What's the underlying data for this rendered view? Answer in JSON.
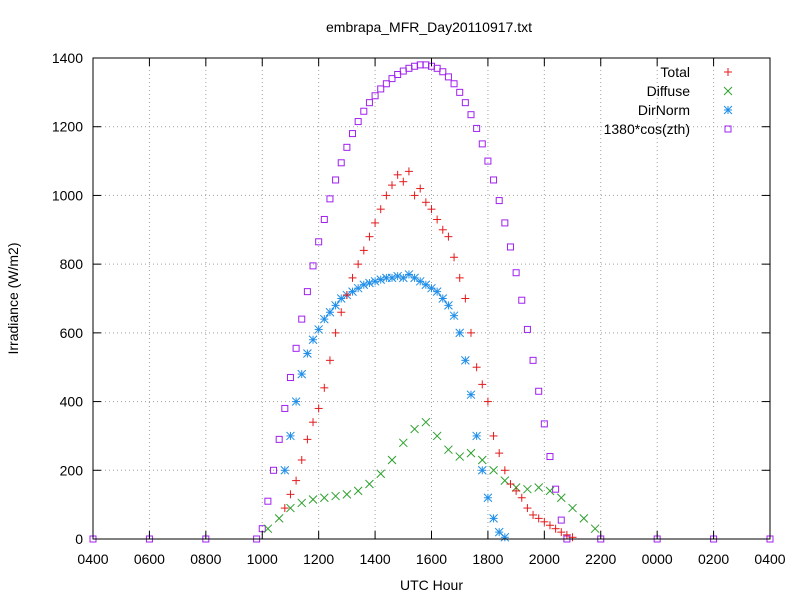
{
  "chart_data": {
    "type": "scatter",
    "title": "embrapa_MFR_Day20110917.txt",
    "xlabel": "UTC Hour",
    "ylabel": "Irradiance (W/m2)",
    "x_tick_labels": [
      "0400",
      "0600",
      "0800",
      "1000",
      "1200",
      "1400",
      "1600",
      "1800",
      "2000",
      "2200",
      "0000",
      "0200",
      "0400"
    ],
    "y_ticks": [
      0,
      200,
      400,
      600,
      800,
      1000,
      1200,
      1400
    ],
    "xlim": [
      4,
      28
    ],
    "ylim": [
      0,
      1400
    ],
    "grid": true,
    "legend_position": "top-right",
    "series": [
      {
        "name": "Total",
        "marker": "plus",
        "color": "#e41a1c",
        "points": [
          [
            10.8,
            90
          ],
          [
            11.0,
            130
          ],
          [
            11.2,
            170
          ],
          [
            11.4,
            230
          ],
          [
            11.6,
            290
          ],
          [
            11.8,
            340
          ],
          [
            12.0,
            380
          ],
          [
            12.2,
            440
          ],
          [
            12.4,
            520
          ],
          [
            12.6,
            600
          ],
          [
            12.8,
            660
          ],
          [
            13.0,
            710
          ],
          [
            13.2,
            760
          ],
          [
            13.4,
            800
          ],
          [
            13.6,
            840
          ],
          [
            13.8,
            880
          ],
          [
            14.0,
            920
          ],
          [
            14.2,
            960
          ],
          [
            14.4,
            1000
          ],
          [
            14.6,
            1030
          ],
          [
            14.8,
            1060
          ],
          [
            15.0,
            1040
          ],
          [
            15.2,
            1070
          ],
          [
            15.4,
            1000
          ],
          [
            15.6,
            1020
          ],
          [
            15.8,
            980
          ],
          [
            16.0,
            960
          ],
          [
            16.2,
            930
          ],
          [
            16.4,
            900
          ],
          [
            16.6,
            880
          ],
          [
            16.8,
            820
          ],
          [
            17.0,
            760
          ],
          [
            17.2,
            700
          ],
          [
            17.4,
            600
          ],
          [
            17.6,
            500
          ],
          [
            17.8,
            450
          ],
          [
            18.0,
            400
          ],
          [
            18.2,
            300
          ],
          [
            18.4,
            250
          ],
          [
            18.6,
            200
          ],
          [
            18.8,
            160
          ],
          [
            19.0,
            140
          ],
          [
            19.2,
            120
          ],
          [
            19.4,
            90
          ],
          [
            19.6,
            70
          ],
          [
            19.8,
            60
          ],
          [
            20.0,
            50
          ],
          [
            20.2,
            40
          ],
          [
            20.4,
            30
          ],
          [
            20.6,
            20
          ],
          [
            20.8,
            12
          ],
          [
            21.0,
            5
          ]
        ]
      },
      {
        "name": "Diffuse",
        "marker": "cross",
        "color": "#2ca02c",
        "points": [
          [
            10.2,
            30
          ],
          [
            10.6,
            60
          ],
          [
            11.0,
            90
          ],
          [
            11.4,
            105
          ],
          [
            11.8,
            115
          ],
          [
            12.2,
            120
          ],
          [
            12.6,
            125
          ],
          [
            13.0,
            130
          ],
          [
            13.4,
            140
          ],
          [
            13.8,
            160
          ],
          [
            14.2,
            190
          ],
          [
            14.6,
            230
          ],
          [
            15.0,
            280
          ],
          [
            15.4,
            320
          ],
          [
            15.8,
            340
          ],
          [
            16.2,
            300
          ],
          [
            16.6,
            260
          ],
          [
            17.0,
            240
          ],
          [
            17.4,
            250
          ],
          [
            17.8,
            230
          ],
          [
            18.2,
            200
          ],
          [
            18.6,
            170
          ],
          [
            19.0,
            150
          ],
          [
            19.4,
            145
          ],
          [
            19.8,
            150
          ],
          [
            20.2,
            140
          ],
          [
            20.6,
            120
          ],
          [
            21.0,
            90
          ],
          [
            21.4,
            60
          ],
          [
            21.8,
            30
          ]
        ]
      },
      {
        "name": "DirNorm",
        "marker": "star",
        "color": "#1f8ee8",
        "points": [
          [
            10.8,
            200
          ],
          [
            11.0,
            300
          ],
          [
            11.2,
            400
          ],
          [
            11.4,
            480
          ],
          [
            11.6,
            540
          ],
          [
            11.8,
            580
          ],
          [
            12.0,
            610
          ],
          [
            12.2,
            640
          ],
          [
            12.4,
            660
          ],
          [
            12.6,
            680
          ],
          [
            12.8,
            700
          ],
          [
            13.0,
            710
          ],
          [
            13.2,
            720
          ],
          [
            13.4,
            730
          ],
          [
            13.6,
            740
          ],
          [
            13.8,
            745
          ],
          [
            14.0,
            750
          ],
          [
            14.2,
            755
          ],
          [
            14.4,
            760
          ],
          [
            14.6,
            760
          ],
          [
            14.8,
            765
          ],
          [
            15.0,
            760
          ],
          [
            15.2,
            770
          ],
          [
            15.4,
            760
          ],
          [
            15.6,
            750
          ],
          [
            15.8,
            740
          ],
          [
            16.0,
            730
          ],
          [
            16.2,
            720
          ],
          [
            16.4,
            700
          ],
          [
            16.6,
            680
          ],
          [
            16.8,
            650
          ],
          [
            17.0,
            600
          ],
          [
            17.2,
            520
          ],
          [
            17.4,
            420
          ],
          [
            17.6,
            300
          ],
          [
            17.8,
            200
          ],
          [
            18.0,
            120
          ],
          [
            18.2,
            60
          ],
          [
            18.4,
            20
          ],
          [
            18.6,
            5
          ]
        ]
      },
      {
        "name": "1380*cos(zth)",
        "marker": "open-square",
        "color": "#a020f0",
        "points": [
          [
            4.0,
            0
          ],
          [
            6.0,
            0
          ],
          [
            8.0,
            0
          ],
          [
            9.8,
            0
          ],
          [
            10.0,
            30
          ],
          [
            10.2,
            110
          ],
          [
            10.4,
            200
          ],
          [
            10.6,
            290
          ],
          [
            10.8,
            380
          ],
          [
            11.0,
            470
          ],
          [
            11.2,
            555
          ],
          [
            11.4,
            640
          ],
          [
            11.6,
            720
          ],
          [
            11.8,
            795
          ],
          [
            12.0,
            865
          ],
          [
            12.2,
            930
          ],
          [
            12.4,
            990
          ],
          [
            12.6,
            1045
          ],
          [
            12.8,
            1095
          ],
          [
            13.0,
            1140
          ],
          [
            13.2,
            1180
          ],
          [
            13.4,
            1215
          ],
          [
            13.6,
            1245
          ],
          [
            13.8,
            1270
          ],
          [
            14.0,
            1290
          ],
          [
            14.2,
            1310
          ],
          [
            14.4,
            1325
          ],
          [
            14.6,
            1340
          ],
          [
            14.8,
            1352
          ],
          [
            15.0,
            1362
          ],
          [
            15.2,
            1370
          ],
          [
            15.4,
            1376
          ],
          [
            15.6,
            1380
          ],
          [
            15.8,
            1380
          ],
          [
            16.0,
            1376
          ],
          [
            16.2,
            1370
          ],
          [
            16.4,
            1360
          ],
          [
            16.6,
            1345
          ],
          [
            16.8,
            1325
          ],
          [
            17.0,
            1300
          ],
          [
            17.2,
            1270
          ],
          [
            17.4,
            1235
          ],
          [
            17.6,
            1195
          ],
          [
            17.8,
            1150
          ],
          [
            18.0,
            1100
          ],
          [
            18.2,
            1045
          ],
          [
            18.4,
            985
          ],
          [
            18.6,
            920
          ],
          [
            18.8,
            850
          ],
          [
            19.0,
            775
          ],
          [
            19.2,
            695
          ],
          [
            19.4,
            610
          ],
          [
            19.6,
            520
          ],
          [
            19.8,
            430
          ],
          [
            20.0,
            335
          ],
          [
            20.2,
            240
          ],
          [
            20.4,
            145
          ],
          [
            20.6,
            55
          ],
          [
            20.8,
            0
          ],
          [
            22.0,
            0
          ],
          [
            24.0,
            0
          ],
          [
            26.0,
            0
          ],
          [
            28.0,
            0
          ]
        ]
      }
    ]
  }
}
